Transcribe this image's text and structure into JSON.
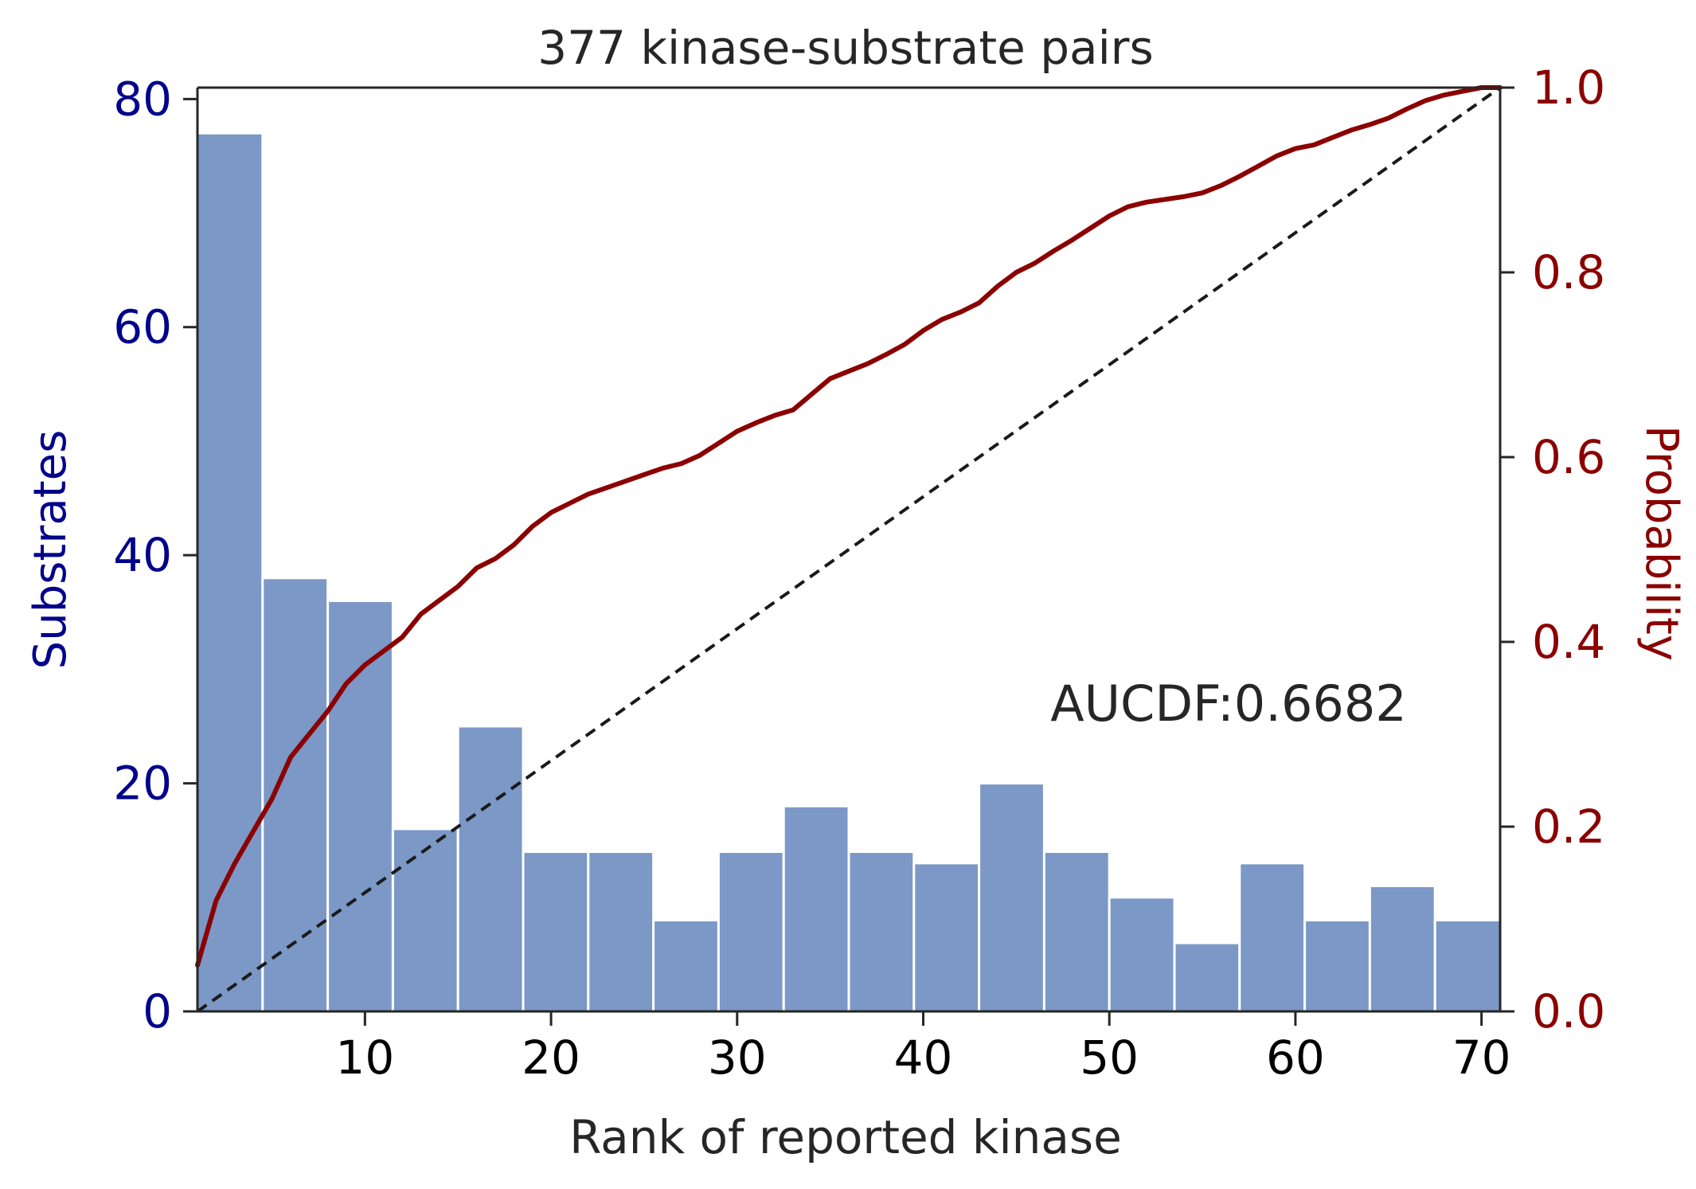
{
  "chart_data": {
    "type": "bar",
    "title": "377 kinase-substrate pairs",
    "xlabel": "Rank of reported kinase",
    "ylabel": "Substrates",
    "y2label": "Probability",
    "annotation": "AUCDF:0.6682",
    "xlim": [
      1,
      71
    ],
    "ylim": [
      0,
      81
    ],
    "y2lim": [
      0,
      1.0
    ],
    "xticks": [
      10,
      20,
      30,
      40,
      50,
      60,
      70
    ],
    "xtick_labels": [
      "10",
      "20",
      "30",
      "40",
      "50",
      "60",
      "70"
    ],
    "yticks": [
      0,
      20,
      40,
      60,
      80
    ],
    "ytick_labels": [
      "0",
      "20",
      "40",
      "60",
      "80"
    ],
    "y2ticks": [
      0.0,
      0.2,
      0.4,
      0.6,
      0.8,
      1.0
    ],
    "y2tick_labels": [
      "0.0",
      "0.2",
      "0.4",
      "0.6",
      "0.8",
      "1.0"
    ],
    "bin_edges": [
      1.0,
      4.5,
      8.0,
      11.5,
      15.0,
      18.5,
      22.0,
      25.5,
      29.0,
      32.5,
      36.0,
      39.5,
      43.0,
      46.5,
      50.0,
      53.5,
      57.0,
      60.5,
      64.0,
      67.5,
      71.0
    ],
    "values": [
      77,
      38,
      36,
      16,
      25,
      14,
      14,
      8,
      14,
      18,
      14,
      13,
      20,
      14,
      10,
      6,
      13,
      8,
      11,
      8
    ],
    "cdf": {
      "name": "CDF",
      "x": [
        1,
        2,
        3,
        4,
        5,
        6,
        7,
        8,
        9,
        10,
        11,
        12,
        13,
        14,
        15,
        16,
        17,
        18,
        19,
        20,
        21,
        22,
        23,
        24,
        25,
        26,
        27,
        28,
        29,
        30,
        31,
        32,
        33,
        34,
        35,
        36,
        37,
        38,
        39,
        40,
        41,
        42,
        43,
        44,
        45,
        46,
        47,
        48,
        49,
        50,
        51,
        52,
        53,
        54,
        55,
        56,
        57,
        58,
        59,
        60,
        61,
        62,
        63,
        64,
        65,
        66,
        67,
        68,
        69,
        70,
        71
      ],
      "y": [
        0.05,
        0.12,
        0.16,
        0.195,
        0.23,
        0.275,
        0.3,
        0.325,
        0.355,
        0.375,
        0.39,
        0.405,
        0.43,
        0.445,
        0.46,
        0.48,
        0.49,
        0.505,
        0.525,
        0.54,
        0.55,
        0.56,
        0.567,
        0.574,
        0.581,
        0.588,
        0.593,
        0.602,
        0.615,
        0.628,
        0.637,
        0.645,
        0.651,
        0.668,
        0.685,
        0.693,
        0.701,
        0.711,
        0.722,
        0.737,
        0.749,
        0.757,
        0.767,
        0.785,
        0.8,
        0.81,
        0.823,
        0.835,
        0.848,
        0.861,
        0.871,
        0.876,
        0.879,
        0.882,
        0.886,
        0.894,
        0.904,
        0.915,
        0.926,
        0.934,
        0.938,
        0.946,
        0.954,
        0.96,
        0.967,
        0.977,
        0.986,
        0.992,
        0.996,
        1.0,
        1.0
      ]
    },
    "reference_line": {
      "x": [
        1,
        71
      ],
      "y": [
        0.0,
        1.0
      ],
      "style": "dashed"
    },
    "colors": {
      "bars": "#7b98c6",
      "bar_edge": "#ffffff",
      "cdf_line": "#8b0000",
      "reference_line": "#1a1a1a",
      "left_axis": "#00008b",
      "right_axis": "#8b0000",
      "text": "#262626",
      "x_ticks": "#000000",
      "spine": "#262626"
    },
    "grid": false,
    "legend": "none"
  }
}
